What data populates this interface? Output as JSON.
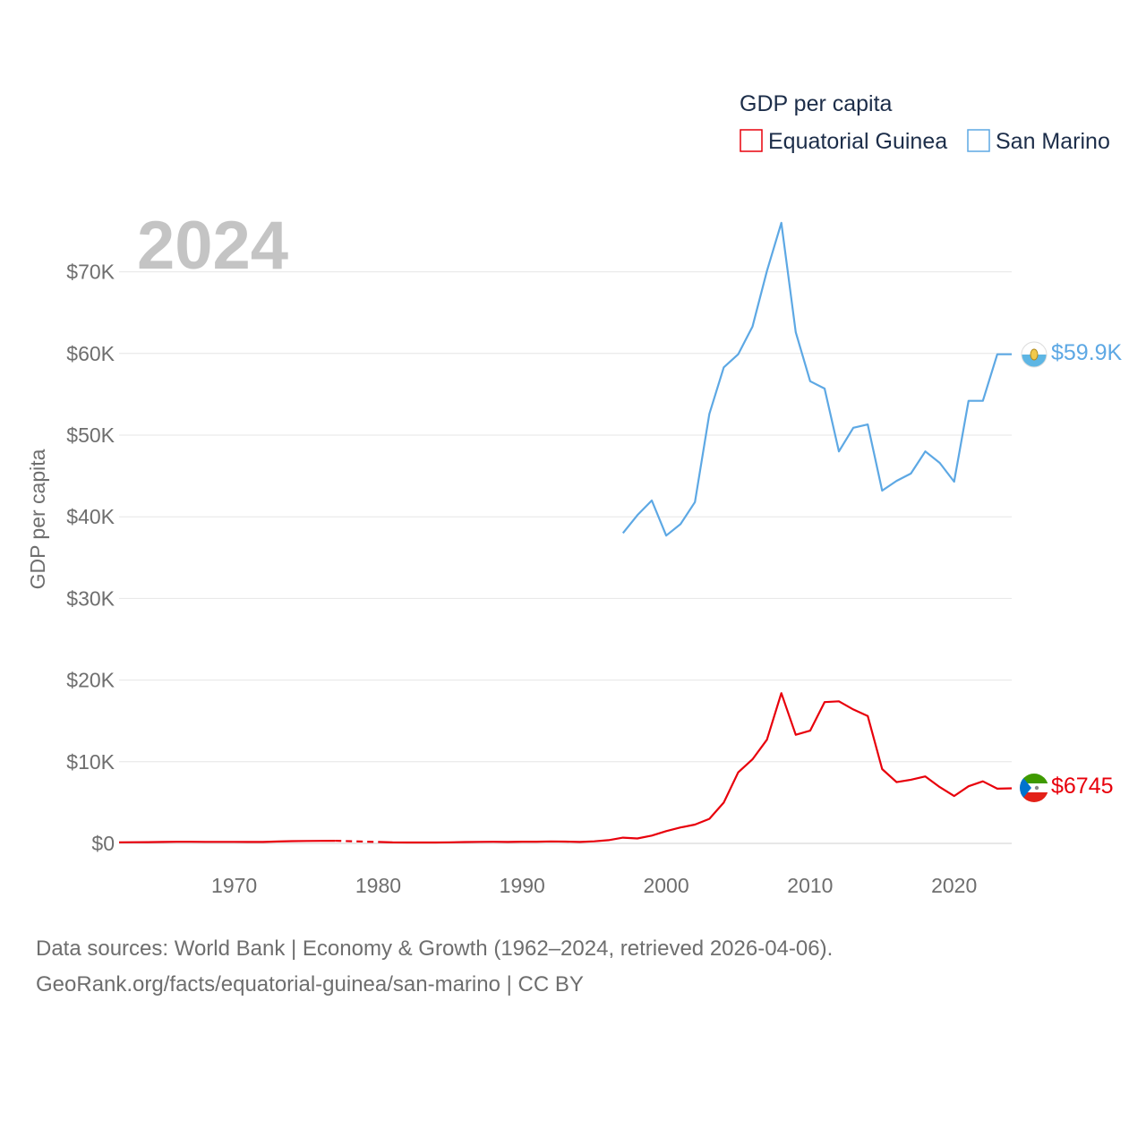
{
  "chart_data": {
    "type": "line",
    "year_label": "2024",
    "ylabel": "GDP per capita",
    "xlabel": "",
    "xlim": [
      1962,
      2024
    ],
    "ylim": [
      0,
      76000
    ],
    "x_ticks": [
      1970,
      1980,
      1990,
      2000,
      2010,
      2020
    ],
    "y_ticks": [
      {
        "value": 0,
        "label": "$0"
      },
      {
        "value": 10000,
        "label": "$10K"
      },
      {
        "value": 20000,
        "label": "$20K"
      },
      {
        "value": 30000,
        "label": "$30K"
      },
      {
        "value": 40000,
        "label": "$40K"
      },
      {
        "value": 50000,
        "label": "$50K"
      },
      {
        "value": 60000,
        "label": "$60K"
      },
      {
        "value": 70000,
        "label": "$70K"
      }
    ],
    "legend": {
      "title": "GDP per capita",
      "position": "top-right"
    },
    "series": [
      {
        "name": "Equatorial Guinea",
        "color": "#e8000b",
        "end_label": "$6745",
        "flag": "equatorial-guinea-flag-icon",
        "gap": [
          1977,
          1980
        ],
        "points": [
          [
            1962,
            130
          ],
          [
            1963,
            140
          ],
          [
            1964,
            150
          ],
          [
            1965,
            180
          ],
          [
            1966,
            200
          ],
          [
            1967,
            200
          ],
          [
            1968,
            190
          ],
          [
            1969,
            190
          ],
          [
            1970,
            190
          ],
          [
            1971,
            180
          ],
          [
            1972,
            170
          ],
          [
            1973,
            230
          ],
          [
            1974,
            270
          ],
          [
            1975,
            300
          ],
          [
            1976,
            310
          ],
          [
            1977,
            320
          ],
          [
            1980,
            170
          ],
          [
            1981,
            120
          ],
          [
            1982,
            110
          ],
          [
            1983,
            110
          ],
          [
            1984,
            110
          ],
          [
            1985,
            130
          ],
          [
            1986,
            160
          ],
          [
            1987,
            190
          ],
          [
            1988,
            200
          ],
          [
            1989,
            180
          ],
          [
            1990,
            210
          ],
          [
            1991,
            210
          ],
          [
            1992,
            240
          ],
          [
            1993,
            220
          ],
          [
            1994,
            170
          ],
          [
            1995,
            250
          ],
          [
            1996,
            400
          ],
          [
            1997,
            700
          ],
          [
            1998,
            600
          ],
          [
            1999,
            950
          ],
          [
            2000,
            1500
          ],
          [
            2001,
            1950
          ],
          [
            2002,
            2300
          ],
          [
            2003,
            3000
          ],
          [
            2004,
            5000
          ],
          [
            2005,
            8700
          ],
          [
            2006,
            10300
          ],
          [
            2007,
            12700
          ],
          [
            2008,
            18400
          ],
          [
            2009,
            13300
          ],
          [
            2010,
            13800
          ],
          [
            2011,
            17300
          ],
          [
            2012,
            17400
          ],
          [
            2013,
            16400
          ],
          [
            2014,
            15600
          ],
          [
            2015,
            9100
          ],
          [
            2016,
            7500
          ],
          [
            2017,
            7800
          ],
          [
            2018,
            8200
          ],
          [
            2019,
            6900
          ],
          [
            2020,
            5800
          ],
          [
            2021,
            7000
          ],
          [
            2022,
            7600
          ],
          [
            2023,
            6700
          ],
          [
            2024,
            6745
          ]
        ]
      },
      {
        "name": "San Marino",
        "color": "#5da8e4",
        "end_label": "$59.9K",
        "flag": "san-marino-flag-icon",
        "gap": null,
        "points": [
          [
            1997,
            38000
          ],
          [
            1998,
            40200
          ],
          [
            1999,
            42000
          ],
          [
            2000,
            37700
          ],
          [
            2001,
            39100
          ],
          [
            2002,
            41800
          ],
          [
            2003,
            52600
          ],
          [
            2004,
            58300
          ],
          [
            2005,
            59900
          ],
          [
            2006,
            63300
          ],
          [
            2007,
            70100
          ],
          [
            2008,
            76000
          ],
          [
            2009,
            62600
          ],
          [
            2010,
            56600
          ],
          [
            2011,
            55700
          ],
          [
            2012,
            48000
          ],
          [
            2013,
            50900
          ],
          [
            2014,
            51300
          ],
          [
            2015,
            43200
          ],
          [
            2016,
            44400
          ],
          [
            2017,
            45300
          ],
          [
            2018,
            48000
          ],
          [
            2019,
            46600
          ],
          [
            2020,
            44300
          ],
          [
            2021,
            54200
          ],
          [
            2022,
            54200
          ],
          [
            2023,
            59900
          ],
          [
            2024,
            59900
          ]
        ]
      }
    ]
  },
  "footer": {
    "line1": "Data sources: World Bank | Economy & Growth (1962–2024, retrieved 2026-04-06).",
    "line2": "GeoRank.org/facts/equatorial-guinea/san-marino | CC BY"
  }
}
